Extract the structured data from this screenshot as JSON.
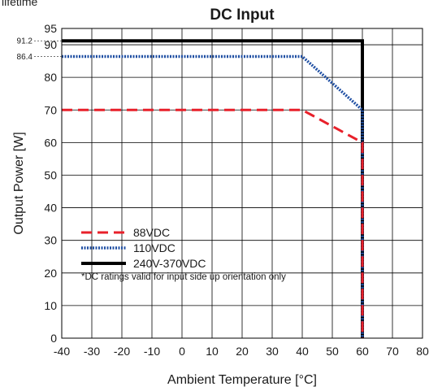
{
  "cropped_header": "lifetime",
  "chart_data": {
    "type": "line",
    "title": "DC Input",
    "xlabel": "Ambient Temperature [°C]",
    "ylabel": "Output Power [W]",
    "xlim": [
      -40,
      80
    ],
    "ylim": [
      0,
      95
    ],
    "x_ticks": [
      "-40",
      "-30",
      "-20",
      "-10",
      "0",
      "10",
      "20",
      "30",
      "40",
      "50",
      "60",
      "70",
      "80"
    ],
    "y_ticks": [
      "0",
      "10",
      "20",
      "30",
      "40",
      "50",
      "60",
      "70",
      "80",
      "90",
      "95"
    ],
    "reference_labels": [
      {
        "text": "91.2",
        "value": 91.2
      },
      {
        "text": "86.4",
        "value": 86.4
      }
    ],
    "grid": true,
    "legend_position": "bottom-left",
    "note": "*DC ratings valid for input side up orientation only",
    "series": [
      {
        "name": "88VDC",
        "color": "#e8202a",
        "style": "dashed",
        "points": [
          [
            -40,
            70
          ],
          [
            40,
            70
          ],
          [
            60,
            60
          ],
          [
            60,
            0
          ]
        ]
      },
      {
        "name": "110VDC",
        "color": "#1f4fa3",
        "style": "dotted",
        "points": [
          [
            -40,
            86.4
          ],
          [
            40,
            86.4
          ],
          [
            60,
            70
          ],
          [
            60,
            0
          ]
        ]
      },
      {
        "name": "240V-370VDC",
        "color": "#000000",
        "style": "solid",
        "points": [
          [
            -40,
            91.2
          ],
          [
            60,
            91.2
          ],
          [
            60,
            0
          ]
        ]
      }
    ]
  }
}
